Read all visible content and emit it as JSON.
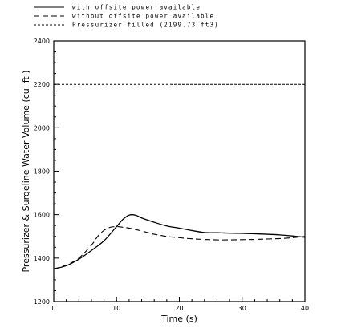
{
  "chart_data": {
    "type": "line",
    "xlabel": "Time (s)",
    "ylabel": "Pressurizer & Surgeline Water Volume (cu. ft.)",
    "xlim": [
      0,
      40
    ],
    "ylim": [
      1200,
      2400
    ],
    "xticks": [
      0,
      10,
      20,
      30,
      40
    ],
    "yticks": [
      1200,
      1400,
      1600,
      1800,
      2000,
      2200,
      2400
    ],
    "grid": false,
    "legend_position": "above plot, left",
    "series": [
      {
        "name": "with offsite power available",
        "style": "solid",
        "x": [
          0,
          2,
          4,
          6,
          8,
          10,
          11,
          12,
          13,
          14,
          16,
          18,
          20,
          22,
          24,
          26,
          28,
          30,
          32,
          34,
          36,
          38,
          40
        ],
        "y": [
          1350,
          1365,
          1395,
          1435,
          1480,
          1545,
          1578,
          1598,
          1598,
          1585,
          1565,
          1548,
          1538,
          1527,
          1518,
          1517,
          1515,
          1514,
          1512,
          1510,
          1507,
          1502,
          1496
        ]
      },
      {
        "name": "without offsite power available",
        "style": "dashed",
        "x": [
          0,
          2,
          4,
          6,
          7,
          8,
          9,
          10,
          11,
          12,
          14,
          16,
          18,
          20,
          22,
          24,
          26,
          28,
          30,
          32,
          34,
          36,
          38,
          40
        ],
        "y": [
          1350,
          1368,
          1400,
          1460,
          1500,
          1528,
          1542,
          1545,
          1542,
          1538,
          1525,
          1510,
          1500,
          1494,
          1489,
          1486,
          1484,
          1484,
          1485,
          1486,
          1488,
          1490,
          1494,
          1500
        ]
      },
      {
        "name": "Pressurizer filled (2199.73 ft3)",
        "style": "dotted",
        "x": [
          0,
          40
        ],
        "y": [
          2199.73,
          2199.73
        ]
      }
    ]
  }
}
